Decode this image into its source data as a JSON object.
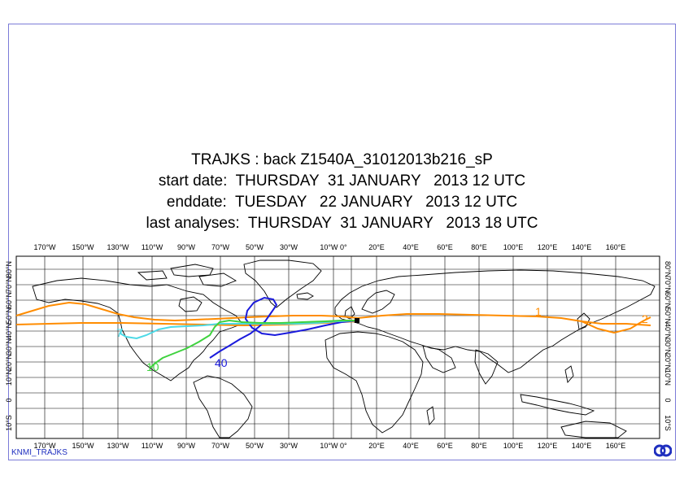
{
  "title": {
    "line1": "TRAJKS : back Z1540A_31012013b216_sP",
    "line2": "start date:  THURSDAY  31 JANUARY   2013 12 UTC",
    "line3": "enddate:  TUESDAY   22 JANUARY   2013 12 UTC",
    "line4": "last analyses:  THURSDAY  31 JANUARY   2013 18 UTC"
  },
  "map": {
    "projection": "cylindrical",
    "lon_labels": [
      "170°W",
      "150°W",
      "130°W",
      "110°W",
      "90°W",
      "70°W",
      "50°W",
      "30°W",
      "10°W 0°",
      "20°E",
      "40°E",
      "60°E",
      "80°E",
      "100°E",
      "120°E",
      "140°E",
      "160°E"
    ],
    "lat_labels": [
      "80°N",
      "70°N",
      "60°N",
      "50°N",
      "40°N",
      "30°N",
      "20°N",
      "10°N",
      "0",
      "10°S"
    ],
    "trajectories": [
      {
        "color": "#ff8c00",
        "markers": [
          "1",
          "2"
        ]
      },
      {
        "color": "#1a1adc",
        "markers": [
          "40"
        ]
      },
      {
        "color": "#4dd9e6",
        "markers": [
          "7"
        ]
      },
      {
        "color": "#3fd23f",
        "markers": [
          "10"
        ]
      }
    ]
  },
  "footer": {
    "label": "KNMI_TRAJKS",
    "logo": "ecmwf-logo-icon"
  }
}
